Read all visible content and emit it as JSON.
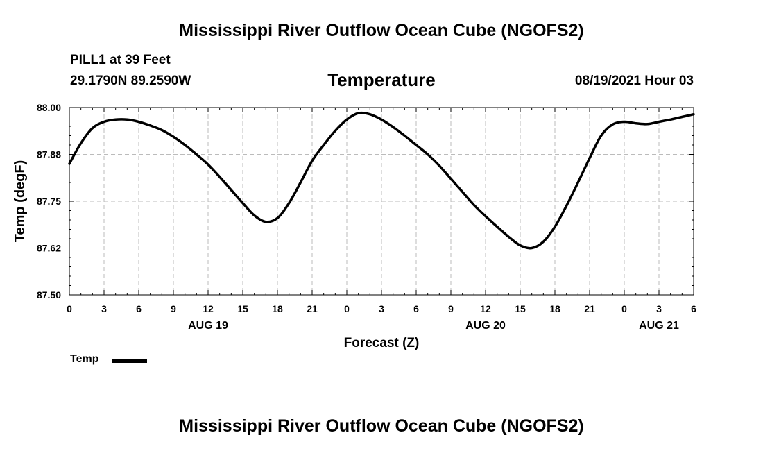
{
  "header": {
    "title": "Mississippi River Outflow Ocean Cube (NGOFS2)",
    "station": "PILL1 at 39 Feet",
    "coords": "29.1790N  89.2590W",
    "chart_title": "Temperature",
    "datetime": "08/19/2021 Hour 03"
  },
  "legend": {
    "label": "Temp",
    "color": "#000000"
  },
  "footer": {
    "title": "Mississippi River Outflow Ocean Cube (NGOFS2)"
  },
  "chart_data": {
    "type": "line",
    "title": "Temperature",
    "xlabel": "Forecast (Z)",
    "ylabel": "Temp (degF)",
    "ylim": [
      87.5,
      88.0
    ],
    "xlim": [
      0,
      54
    ],
    "x_tick_labels": [
      "0",
      "3",
      "6",
      "9",
      "12",
      "15",
      "18",
      "21",
      "0",
      "3",
      "6",
      "9",
      "12",
      "15",
      "18",
      "21",
      "0",
      "3",
      "6"
    ],
    "y_tick_labels": [
      "87.50",
      "87.62",
      "87.75",
      "87.88",
      "88.00"
    ],
    "y_ticks": [
      87.5,
      87.625,
      87.75,
      87.875,
      88.0
    ],
    "date_labels": [
      {
        "hours": 12,
        "label": "AUG 19"
      },
      {
        "hours": 36,
        "label": "AUG 20"
      },
      {
        "hours": 51,
        "label": "AUG 21"
      }
    ],
    "grid": true,
    "series": [
      {
        "name": "Temp",
        "x": [
          0,
          1,
          2,
          3,
          4,
          5,
          6,
          7,
          8,
          9,
          10,
          11,
          12,
          13,
          14,
          15,
          16,
          17,
          18,
          19,
          20,
          21,
          22,
          23,
          24,
          25,
          26,
          27,
          28,
          29,
          30,
          31,
          32,
          33,
          34,
          35,
          36,
          37,
          38,
          39,
          40,
          41,
          42,
          43,
          44,
          45,
          46,
          47,
          48,
          49,
          50,
          51,
          52,
          53,
          54
        ],
        "y": [
          87.85,
          87.905,
          87.945,
          87.962,
          87.968,
          87.968,
          87.962,
          87.952,
          87.94,
          87.922,
          87.9,
          87.875,
          87.848,
          87.815,
          87.78,
          87.745,
          87.712,
          87.695,
          87.705,
          87.745,
          87.8,
          87.858,
          87.9,
          87.938,
          87.968,
          87.985,
          87.982,
          87.968,
          87.948,
          87.925,
          87.9,
          87.875,
          87.845,
          87.81,
          87.775,
          87.74,
          87.71,
          87.682,
          87.655,
          87.632,
          87.625,
          87.642,
          87.682,
          87.738,
          87.8,
          87.865,
          87.925,
          87.955,
          87.962,
          87.958,
          87.956,
          87.962,
          87.968,
          87.975,
          87.982
        ]
      }
    ]
  }
}
